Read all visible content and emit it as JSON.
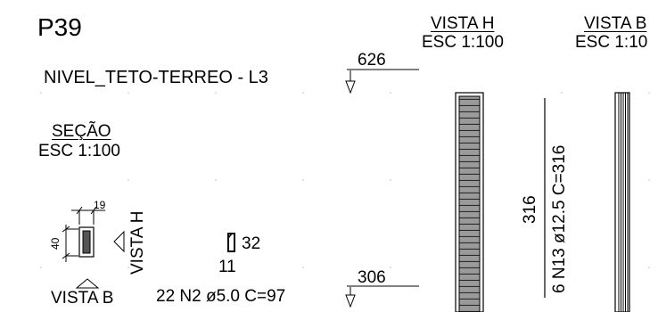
{
  "sheet": {
    "element_id": "P39",
    "level_label": "NIVEL_TETO-TERREO - L3"
  },
  "section_view": {
    "title": "SEÇÃO",
    "scale": "ESC 1:100",
    "dim_width": "19",
    "dim_height": "40",
    "label_vista_h": "VISTA H",
    "label_vista_b": "VISTA B"
  },
  "stirrup_detail": {
    "dim_height": "32",
    "dim_width": "11",
    "callout": "22 N2 ø5.0 C=97"
  },
  "vista_h": {
    "title": "VISTA H",
    "scale": "ESC 1:100",
    "elevation_top": "626",
    "elevation_bottom": "306",
    "length_label": "316",
    "bar_callout": "6 N13 ø12.5 C=316"
  },
  "vista_b": {
    "title": "VISTA B",
    "scale": "ESC 1:10"
  }
}
